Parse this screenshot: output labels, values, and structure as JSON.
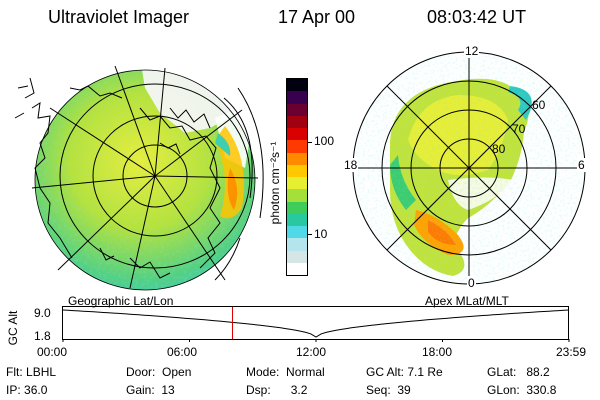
{
  "header": {
    "title": "Ultraviolet Imager",
    "date": "17 Apr 00",
    "time": "08:03:42  UT"
  },
  "colorbar": {
    "unit_label": "photon cm⁻²s⁻¹",
    "tick_high": "100",
    "tick_low": "10",
    "colors": [
      "#ffffff",
      "#d6e6e6",
      "#b4e4ec",
      "#4fd8e6",
      "#28c8a0",
      "#3ecc5a",
      "#a4e03a",
      "#e6ef30",
      "#ffc800",
      "#ff8a00",
      "#ff3a00",
      "#d80000",
      "#a00010",
      "#6a0030",
      "#3a0050",
      "#000010"
    ]
  },
  "panels": {
    "geo": {
      "label": "Geographic Lat/Lon"
    },
    "apex": {
      "label": "Apex  MLat/MLT",
      "mlt_labels": {
        "top": "12",
        "left": "18",
        "right": "6",
        "bottom": "0"
      },
      "lat_labels": [
        "60",
        "70",
        "80"
      ]
    }
  },
  "timeline": {
    "y_label": "GC Alt",
    "y_high": "9.0",
    "y_low": "1.8",
    "ticks": [
      "00:00",
      "06:00",
      "12:00",
      "18:00",
      "23:59"
    ],
    "current_fraction": 0.335
  },
  "info": {
    "flt_label": "Flt:",
    "flt_value": "LBHL",
    "ip_label": "IP:",
    "ip_value": "36.0",
    "door_label": "Door:",
    "door_value": "Open",
    "gain_label": "Gain:",
    "gain_value": "13",
    "mode_label": "Mode:",
    "mode_value": "Normal",
    "dsp_label": "Dsp:",
    "dsp_value": "3.2",
    "gcalt_label": "GC Alt:",
    "gcalt_value": "7.1 Re",
    "seq_label": "Seq:",
    "seq_value": "39",
    "glat_label": "GLat:",
    "glat_value": "88.2",
    "glon_label": "GLon:",
    "glon_value": "330.8"
  }
}
